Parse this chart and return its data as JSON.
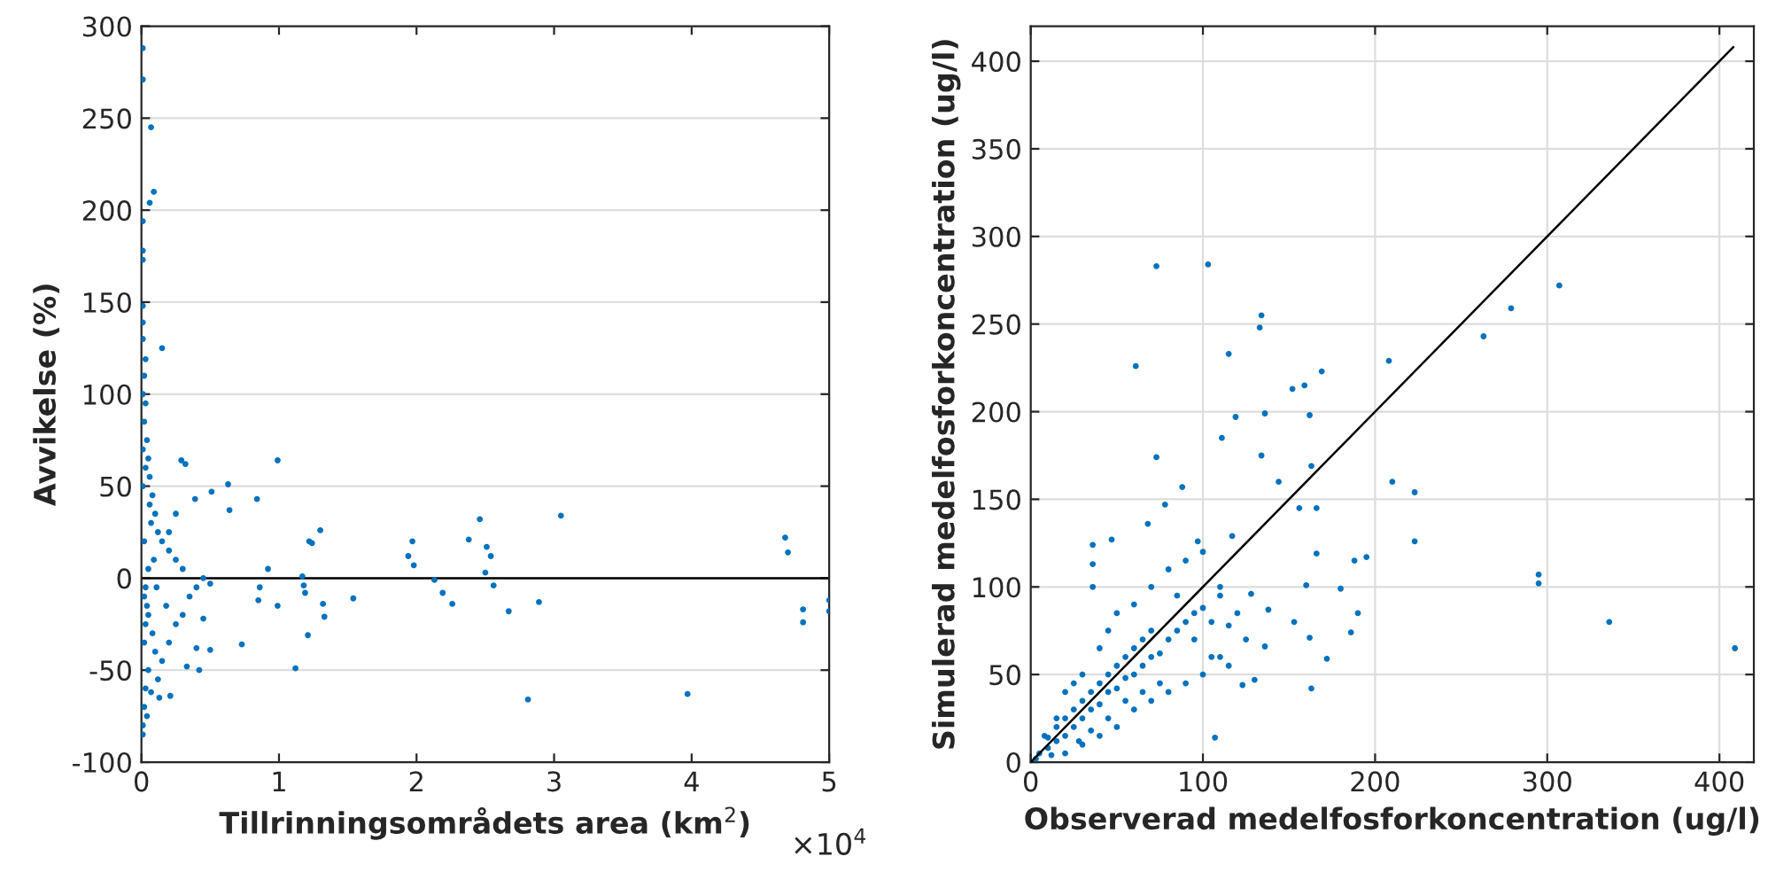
{
  "chart_data": [
    {
      "type": "scatter",
      "xlabel": "Tillrinningsområdets area (km$^{2}$)",
      "ylabel": "Avvikelse (%)",
      "annotations": [
        "×10$^{4}$"
      ],
      "xlim": [
        0,
        5
      ],
      "xticks": [
        0,
        1,
        2,
        3,
        4,
        5
      ],
      "ylim": [
        -100,
        300
      ],
      "yticks": [
        -100,
        -50,
        0,
        50,
        100,
        150,
        200,
        250,
        300
      ],
      "grid": "y",
      "marker": "circle",
      "ref_lines": [
        {
          "axis": "y",
          "value": 0,
          "color": "#000000"
        }
      ],
      "series": [
        {
          "color": "#0072bd",
          "x": [
            0.01,
            0.01,
            0.07,
            0.09,
            0.06,
            0.01,
            0.01,
            0.01,
            0.01,
            0.01,
            0.15,
            0.03,
            0.29,
            0.32,
            0.99,
            0.63,
            0.51,
            0.39,
            0.84,
            0.64,
            1.3,
            1.22,
            1.24,
            0.92,
            1.17,
            1.18,
            1.19,
            0.86,
            0.85,
            0.99,
            1.32,
            1.33,
            1.54,
            1.21,
            0.73,
            1.12,
            0.5,
            0.42,
            0.21,
            0.13,
            1.97,
            1.94,
            1.98,
            2.13,
            2.19,
            2.26,
            2.38,
            2.46,
            2.51,
            2.54,
            2.5,
            2.56,
            2.67,
            2.89,
            2.81,
            3.05,
            3.97,
            4.68,
            4.7,
            4.81,
            4.81,
            5.0,
            5.0,
            0.01,
            0.02,
            0.01,
            0.03,
            0.02,
            0.04,
            0.05,
            0.06,
            0.08,
            0.1,
            0.12,
            0.15,
            0.2,
            0.25,
            0.3,
            0.02,
            0.05,
            0.08,
            0.1,
            0.05,
            0.03,
            0.02,
            0.01,
            0.01,
            0.04,
            0.15,
            0.2,
            0.25,
            0.3,
            0.35,
            0.4,
            0.45,
            0.5,
            0.18,
            0.12,
            0.06,
            0.03,
            0.07,
            0.09,
            0.11,
            0.2,
            0.25,
            0.33,
            0.4,
            0.45,
            0.07,
            0.01,
            0.02,
            0.03,
            0.04,
            0.02,
            0.05,
            0.03,
            0.01
          ],
          "values": [
            288,
            271,
            245,
            210,
            204,
            194,
            178,
            173,
            148,
            139,
            125,
            119,
            64,
            62,
            64,
            51,
            47,
            43,
            43,
            37,
            26,
            20,
            19,
            5,
            1,
            -4,
            -8,
            -5,
            -12,
            -15,
            -14,
            -21,
            -11,
            -31,
            -36,
            -49,
            -39,
            -50,
            -64,
            -65,
            20,
            12,
            7,
            -1,
            -8,
            -14,
            21,
            32,
            17,
            12,
            3,
            -4,
            -18,
            -13,
            -66,
            34,
            -63,
            22,
            14,
            -17,
            -24,
            -12,
            -18,
            130,
            110,
            100,
            95,
            85,
            75,
            65,
            55,
            45,
            35,
            25,
            20,
            15,
            10,
            5,
            -10,
            -20,
            -30,
            -40,
            -50,
            -60,
            -70,
            -80,
            -85,
            -75,
            -45,
            -35,
            -25,
            -20,
            -10,
            -5,
            0,
            -3,
            -15,
            -55,
            40,
            60,
            30,
            10,
            -5,
            25,
            35,
            -48,
            -38,
            -22,
            -62,
            50,
            20,
            -5,
            -15,
            -35,
            5,
            -25,
            70
          ]
        }
      ]
    },
    {
      "type": "scatter",
      "xlabel": "Observerad medelfosforkoncentration (ug/l)",
      "ylabel": "Simulerad medelfosforkoncentration (ug/l)",
      "xlim": [
        0,
        420
      ],
      "xticks": [
        0,
        100,
        200,
        300,
        400
      ],
      "ylim": [
        0,
        420
      ],
      "yticks": [
        0,
        50,
        100,
        150,
        200,
        250,
        300,
        350,
        400
      ],
      "grid": true,
      "marker": "circle",
      "series": [
        {
          "color": "#0072bd",
          "x": [
            73,
            103,
            307,
            279,
            134,
            133,
            263,
            115,
            61,
            208,
            169,
            152,
            159,
            119,
            136,
            162,
            111,
            73,
            134,
            163,
            144,
            210,
            223,
            88,
            78,
            156,
            166,
            68,
            223,
            36,
            47,
            97,
            117,
            166,
            195,
            188,
            295,
            295,
            336,
            409,
            36,
            36,
            180,
            160,
            190,
            186,
            172,
            163,
            107,
            136,
            138,
            128,
            153,
            162,
            123,
            130,
            5,
            10,
            10,
            15,
            15,
            20,
            20,
            25,
            25,
            30,
            30,
            35,
            35,
            40,
            40,
            45,
            45,
            50,
            50,
            55,
            55,
            60,
            60,
            65,
            65,
            70,
            70,
            75,
            80,
            85,
            90,
            95,
            100,
            105,
            110,
            115,
            120,
            40,
            45,
            50,
            30,
            25,
            20,
            60,
            70,
            80,
            90,
            100,
            110,
            125,
            50,
            40,
            60,
            70,
            80,
            90,
            100,
            110,
            30,
            20,
            15,
            8,
            3,
            12,
            85,
            95,
            105,
            115,
            75,
            65,
            55,
            45,
            35,
            28
          ],
          "values": [
            283,
            284,
            272,
            259,
            255,
            248,
            243,
            233,
            226,
            229,
            223,
            213,
            215,
            197,
            199,
            198,
            185,
            174,
            175,
            169,
            160,
            160,
            154,
            157,
            147,
            145,
            145,
            136,
            126,
            124,
            127,
            126,
            129,
            119,
            117,
            115,
            107,
            102,
            80,
            65,
            113,
            100,
            99,
            101,
            85,
            74,
            59,
            42,
            14,
            66,
            87,
            96,
            80,
            71,
            44,
            47,
            5,
            8,
            14,
            12,
            20,
            15,
            25,
            20,
            30,
            25,
            35,
            30,
            40,
            33,
            45,
            40,
            50,
            42,
            55,
            48,
            60,
            50,
            65,
            55,
            70,
            60,
            75,
            62,
            70,
            75,
            80,
            85,
            88,
            80,
            95,
            78,
            85,
            65,
            75,
            85,
            50,
            45,
            40,
            90,
            100,
            110,
            115,
            120,
            100,
            70,
            20,
            15,
            30,
            35,
            40,
            45,
            50,
            60,
            10,
            5,
            25,
            15,
            2,
            4,
            95,
            70,
            60,
            55,
            45,
            40,
            35,
            25,
            18,
            12
          ]
        },
        {
          "type": "line",
          "marker": "none",
          "color": "#000000",
          "x": [
            0,
            408
          ],
          "values": [
            0,
            408
          ]
        }
      ]
    }
  ]
}
